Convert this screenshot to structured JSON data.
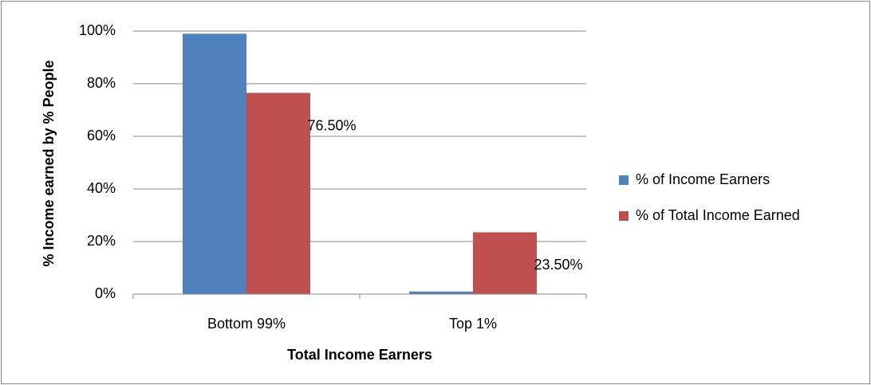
{
  "chart_data": {
    "type": "bar",
    "x_label": "Total Income Earners",
    "y_label": "% Income earned by % People",
    "categories": [
      "Bottom 99%",
      "Top 1%"
    ],
    "series": [
      {
        "name": "% of Income Earners",
        "color": "#4f81bd",
        "values": [
          99,
          1
        ]
      },
      {
        "name": "% of Total Income Earned",
        "color": "#c0504d",
        "values": [
          76.5,
          23.5
        ],
        "value_labels": [
          "76.50%",
          "23.50%"
        ]
      }
    ],
    "ylim": [
      0,
      100
    ],
    "yticks": [
      {
        "value": 0,
        "label": "0%"
      },
      {
        "value": 20,
        "label": "20%"
      },
      {
        "value": 40,
        "label": "40%"
      },
      {
        "value": 60,
        "label": "60%"
      },
      {
        "value": 80,
        "label": "80%"
      },
      {
        "value": 100,
        "label": "100%"
      }
    ],
    "grid": true,
    "legend": "right"
  }
}
